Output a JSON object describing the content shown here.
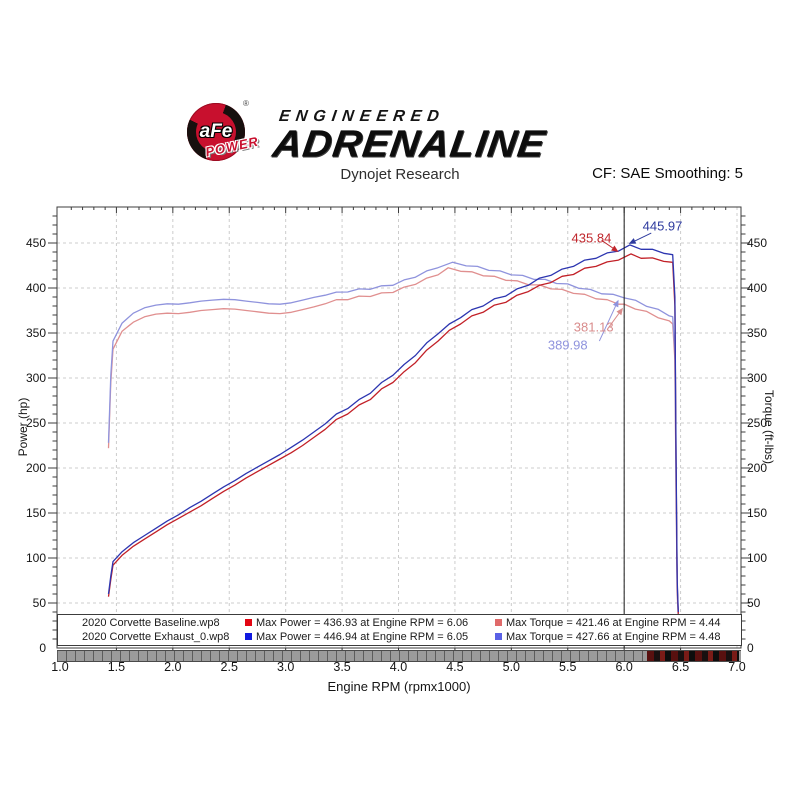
{
  "header": {
    "logo": {
      "badge_text": "aFe",
      "badge_sub": "POWER",
      "registered_mark": "®",
      "line1": "ENGINEERED",
      "line2": "ADRENALINE"
    },
    "subtitle": "Dynojet Research",
    "cf_label": "CF: SAE Smoothing: 5"
  },
  "colors": {
    "brand_red": "#c8102e",
    "power_baseline": "#c22027",
    "power_exhaust": "#2c35b0",
    "torque_baseline": "#e08f8f",
    "torque_exhaust": "#8f93dd",
    "cursor": "#1a1a1a",
    "grid": "#cccccc",
    "axis": "#3c3c3c"
  },
  "chart_data": {
    "type": "line",
    "xlabel": "Engine RPM (rpmx1000)",
    "ylabel_left": "Power (hp)",
    "ylabel_right": "Torque (ft-lbs)",
    "xlim": [
      1.0,
      7.0
    ],
    "ylim": [
      0,
      490
    ],
    "x_ticks": [
      "1.0",
      "1.5",
      "2.0",
      "2.5",
      "3.0",
      "3.5",
      "4.0",
      "4.5",
      "5.0",
      "5.5",
      "6.0",
      "6.5",
      "7.0"
    ],
    "y_ticks": [
      0,
      50,
      100,
      150,
      200,
      250,
      300,
      350,
      400,
      450
    ],
    "grid": true,
    "legend_position": "bottom",
    "cursor_rpm": 6.0,
    "series": [
      {
        "name": "2020 Corvette Baseline torque",
        "unit": "ft-lbs",
        "axis": "right",
        "color": "#e08f8f",
        "max": {
          "value": 421.46,
          "rpm": 4.44
        },
        "points": [
          [
            1.43,
            222
          ],
          [
            1.45,
            295
          ],
          [
            1.47,
            332
          ],
          [
            1.55,
            352
          ],
          [
            1.65,
            362
          ],
          [
            1.75,
            368
          ],
          [
            1.85,
            371
          ],
          [
            1.95,
            372
          ],
          [
            2.05,
            371.5
          ],
          [
            2.15,
            373
          ],
          [
            2.25,
            375
          ],
          [
            2.35,
            376
          ],
          [
            2.45,
            377
          ],
          [
            2.55,
            376.5
          ],
          [
            2.65,
            375
          ],
          [
            2.75,
            373.5
          ],
          [
            2.85,
            372
          ],
          [
            2.95,
            371.5
          ],
          [
            3.05,
            373
          ],
          [
            3.15,
            376
          ],
          [
            3.25,
            379
          ],
          [
            3.35,
            382.5
          ],
          [
            3.45,
            386
          ],
          [
            3.55,
            388
          ],
          [
            3.65,
            390
          ],
          [
            3.75,
            391.5
          ],
          [
            3.85,
            393.5
          ],
          [
            3.95,
            396
          ],
          [
            4.05,
            400
          ],
          [
            4.15,
            405
          ],
          [
            4.25,
            410
          ],
          [
            4.35,
            415.5
          ],
          [
            4.44,
            421.5
          ],
          [
            4.55,
            419.5
          ],
          [
            4.65,
            417
          ],
          [
            4.75,
            414.5
          ],
          [
            4.85,
            412
          ],
          [
            4.95,
            409.5
          ],
          [
            5.05,
            407
          ],
          [
            5.15,
            404.5
          ],
          [
            5.25,
            402.5
          ],
          [
            5.35,
            400
          ],
          [
            5.45,
            397.5
          ],
          [
            5.55,
            395
          ],
          [
            5.65,
            392
          ],
          [
            5.75,
            389
          ],
          [
            5.85,
            386
          ],
          [
            5.95,
            383
          ],
          [
            6.0,
            381.1
          ],
          [
            6.1,
            377.5
          ],
          [
            6.2,
            373
          ],
          [
            6.3,
            368
          ],
          [
            6.4,
            362.5
          ],
          [
            6.43,
            360
          ],
          [
            6.45,
            320
          ],
          [
            6.46,
            170
          ],
          [
            6.47,
            60
          ],
          [
            6.48,
            33
          ]
        ]
      },
      {
        "name": "2020 Corvette Exhaust_0 torque",
        "unit": "ft-lbs",
        "axis": "right",
        "color": "#8f93dd",
        "max": {
          "value": 427.66,
          "rpm": 4.48
        },
        "points": [
          [
            1.43,
            228
          ],
          [
            1.45,
            303
          ],
          [
            1.47,
            341
          ],
          [
            1.55,
            361
          ],
          [
            1.65,
            372
          ],
          [
            1.75,
            378
          ],
          [
            1.85,
            381
          ],
          [
            1.95,
            382.5
          ],
          [
            2.05,
            382
          ],
          [
            2.15,
            383.5
          ],
          [
            2.25,
            385.5
          ],
          [
            2.35,
            386.5
          ],
          [
            2.45,
            387.5
          ],
          [
            2.55,
            387
          ],
          [
            2.65,
            385.5
          ],
          [
            2.75,
            384
          ],
          [
            2.85,
            382.5
          ],
          [
            2.95,
            382
          ],
          [
            3.05,
            383.5
          ],
          [
            3.15,
            386.5
          ],
          [
            3.25,
            389.5
          ],
          [
            3.35,
            392
          ],
          [
            3.45,
            394.5
          ],
          [
            3.55,
            396.5
          ],
          [
            3.65,
            398
          ],
          [
            3.75,
            399.5
          ],
          [
            3.85,
            401.5
          ],
          [
            3.95,
            404
          ],
          [
            4.05,
            408
          ],
          [
            4.15,
            413
          ],
          [
            4.25,
            418
          ],
          [
            4.35,
            423.5
          ],
          [
            4.48,
            427.7
          ],
          [
            4.6,
            425.5
          ],
          [
            4.7,
            423
          ],
          [
            4.8,
            420.5
          ],
          [
            4.9,
            418
          ],
          [
            5.0,
            415.5
          ],
          [
            5.1,
            413
          ],
          [
            5.2,
            410.5
          ],
          [
            5.3,
            408.5
          ],
          [
            5.4,
            406
          ],
          [
            5.5,
            403.5
          ],
          [
            5.6,
            400.5
          ],
          [
            5.7,
            397.5
          ],
          [
            5.8,
            394.5
          ],
          [
            5.9,
            392
          ],
          [
            6.0,
            390
          ],
          [
            6.1,
            385.5
          ],
          [
            6.2,
            380.5
          ],
          [
            6.3,
            375.5
          ],
          [
            6.4,
            370
          ],
          [
            6.43,
            368
          ],
          [
            6.45,
            328
          ],
          [
            6.46,
            178
          ],
          [
            6.47,
            65
          ],
          [
            6.48,
            35
          ]
        ]
      },
      {
        "name": "2020 Corvette Baseline power",
        "unit": "hp",
        "axis": "left",
        "color": "#c22027",
        "max": {
          "value": 436.93,
          "rpm": 6.06
        },
        "points": [
          [
            1.43,
            57
          ],
          [
            1.45,
            76
          ],
          [
            1.47,
            92
          ],
          [
            1.55,
            103
          ],
          [
            1.65,
            113
          ],
          [
            1.75,
            121
          ],
          [
            1.85,
            129
          ],
          [
            1.95,
            137
          ],
          [
            2.05,
            144
          ],
          [
            2.15,
            151
          ],
          [
            2.25,
            158
          ],
          [
            2.35,
            166
          ],
          [
            2.45,
            174
          ],
          [
            2.55,
            181
          ],
          [
            2.65,
            189
          ],
          [
            2.75,
            196
          ],
          [
            2.85,
            203
          ],
          [
            2.95,
            210
          ],
          [
            3.05,
            217
          ],
          [
            3.15,
            225
          ],
          [
            3.25,
            234
          ],
          [
            3.35,
            243
          ],
          [
            3.45,
            253
          ],
          [
            3.55,
            261
          ],
          [
            3.65,
            269
          ],
          [
            3.75,
            277
          ],
          [
            3.85,
            287
          ],
          [
            3.95,
            296
          ],
          [
            4.05,
            306
          ],
          [
            4.15,
            318
          ],
          [
            4.25,
            330
          ],
          [
            4.35,
            342
          ],
          [
            4.45,
            352
          ],
          [
            4.55,
            361
          ],
          [
            4.65,
            368
          ],
          [
            4.75,
            374
          ],
          [
            4.85,
            380
          ],
          [
            4.95,
            385
          ],
          [
            5.05,
            391
          ],
          [
            5.15,
            397
          ],
          [
            5.25,
            402
          ],
          [
            5.35,
            407
          ],
          [
            5.45,
            412
          ],
          [
            5.55,
            416
          ],
          [
            5.65,
            421
          ],
          [
            5.75,
            425
          ],
          [
            5.85,
            428
          ],
          [
            5.95,
            432
          ],
          [
            6.06,
            436.9
          ],
          [
            6.15,
            434
          ],
          [
            6.25,
            432.5
          ],
          [
            6.35,
            430.5
          ],
          [
            6.43,
            428.5
          ],
          [
            6.45,
            380
          ],
          [
            6.46,
            200
          ],
          [
            6.47,
            70
          ],
          [
            6.48,
            38
          ]
        ]
      },
      {
        "name": "2020 Corvette Exhaust_0 power",
        "unit": "hp",
        "axis": "left",
        "color": "#2c35b0",
        "max": {
          "value": 446.94,
          "rpm": 6.05
        },
        "points": [
          [
            1.43,
            60
          ],
          [
            1.45,
            80
          ],
          [
            1.47,
            96
          ],
          [
            1.55,
            107
          ],
          [
            1.65,
            117
          ],
          [
            1.75,
            125
          ],
          [
            1.85,
            133
          ],
          [
            1.95,
            141
          ],
          [
            2.05,
            148
          ],
          [
            2.15,
            156
          ],
          [
            2.25,
            163
          ],
          [
            2.35,
            171
          ],
          [
            2.45,
            179
          ],
          [
            2.55,
            186
          ],
          [
            2.65,
            194
          ],
          [
            2.75,
            201
          ],
          [
            2.85,
            208
          ],
          [
            2.95,
            215
          ],
          [
            3.05,
            223
          ],
          [
            3.15,
            231
          ],
          [
            3.25,
            240
          ],
          [
            3.35,
            249
          ],
          [
            3.45,
            259
          ],
          [
            3.55,
            267
          ],
          [
            3.65,
            275
          ],
          [
            3.75,
            284
          ],
          [
            3.85,
            294
          ],
          [
            3.95,
            304
          ],
          [
            4.05,
            314
          ],
          [
            4.15,
            326
          ],
          [
            4.25,
            338
          ],
          [
            4.35,
            350
          ],
          [
            4.45,
            359
          ],
          [
            4.55,
            368
          ],
          [
            4.65,
            375
          ],
          [
            4.75,
            381
          ],
          [
            4.85,
            387
          ],
          [
            4.95,
            392
          ],
          [
            5.05,
            398
          ],
          [
            5.15,
            404
          ],
          [
            5.25,
            410
          ],
          [
            5.35,
            415
          ],
          [
            5.45,
            420
          ],
          [
            5.55,
            425
          ],
          [
            5.65,
            430
          ],
          [
            5.75,
            434
          ],
          [
            5.85,
            438
          ],
          [
            5.95,
            442
          ],
          [
            6.05,
            446.9
          ],
          [
            6.15,
            444
          ],
          [
            6.25,
            442
          ],
          [
            6.35,
            439.5
          ],
          [
            6.43,
            437
          ],
          [
            6.45,
            390
          ],
          [
            6.46,
            210
          ],
          [
            6.47,
            75
          ],
          [
            6.48,
            40
          ]
        ]
      }
    ],
    "annotations": [
      {
        "text": "435.84",
        "color": "#c0272d",
        "label": [
          5.71,
          456
        ],
        "tail": [
          5.8,
          453
        ],
        "tip": [
          5.95,
          440
        ]
      },
      {
        "text": "445.97",
        "color": "#2d3a9e",
        "label": [
          6.34,
          469
        ],
        "tail": [
          6.24,
          461
        ],
        "tip": [
          6.04,
          449
        ]
      },
      {
        "text": "381.13",
        "color": "#d98c8c",
        "label": [
          5.73,
          357
        ],
        "tail": [
          5.85,
          354
        ],
        "tip": [
          5.99,
          378
        ]
      },
      {
        "text": "389.98",
        "color": "#8f93dd",
        "label": [
          5.5,
          337
        ],
        "tail": [
          5.78,
          341
        ],
        "tip": [
          5.95,
          387
        ]
      }
    ]
  },
  "legend": {
    "rows": [
      {
        "name": "2020 Corvette Baseline.wp8",
        "power_color": "#e30613",
        "power_text": "Max Power = 436.93 at Engine RPM = 6.06",
        "torque_color": "#e06a6a",
        "torque_text": "Max Torque = 421.46 at Engine RPM = 4.44"
      },
      {
        "name": "2020 Corvette Exhaust_0.wp8",
        "power_color": "#1019e0",
        "power_text": "Max Power = 446.94 at Engine RPM = 6.05",
        "torque_color": "#5a61e6",
        "torque_text": "Max Torque = 427.66 at Engine RPM = 4.48"
      }
    ]
  }
}
